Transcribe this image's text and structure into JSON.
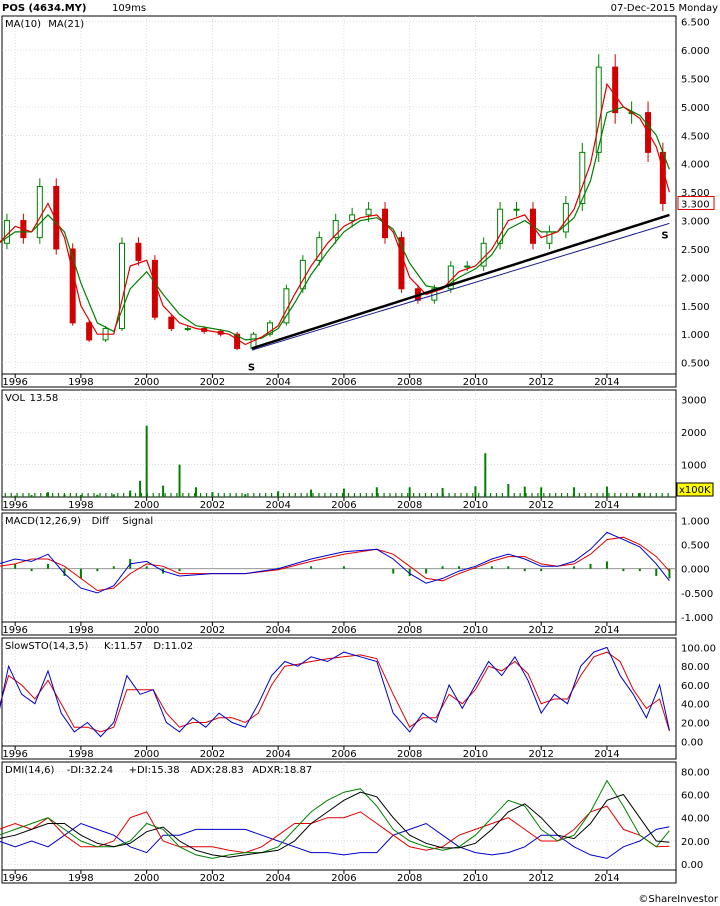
{
  "header": {
    "symbol": "POS (4634.MY)",
    "timing": "109ms",
    "date": "07-Dec-2015 Monday"
  },
  "footer": {
    "credit": "©ShareInvestor"
  },
  "x_axis_years": [
    "1996",
    "1998",
    "2000",
    "2002",
    "2004",
    "2006",
    "2008",
    "2010",
    "2012",
    "2014"
  ],
  "colors": {
    "up": "#008000",
    "down": "#d00000",
    "ma10": "#e00000",
    "ma21": "#008000",
    "trend": "#000000",
    "panel_bg": "#ffffff",
    "grid": "#c8c8c8"
  },
  "chart_data": [
    {
      "type": "line",
      "panel": "price",
      "legend": [
        {
          "name": "MA(10)",
          "color": "#e00000"
        },
        {
          "name": "MA(21)",
          "color": "#008000"
        }
      ],
      "ylim": [
        0.3,
        6.6
      ],
      "yticks": [
        "6.500",
        "6.000",
        "5.500",
        "5.000",
        "4.500",
        "4.000",
        "3.500",
        "3.000",
        "2.500",
        "2.000",
        "1.500",
        "1.000",
        "0.500"
      ],
      "last_price_label": "3.300",
      "support_markers": [
        "S",
        "S"
      ],
      "x": [
        1995.5,
        1996.0,
        1996.5,
        1997.0,
        1997.5,
        1998.0,
        1998.5,
        1999.0,
        1999.5,
        2000.0,
        2000.5,
        2001.0,
        2001.5,
        2002.0,
        2002.5,
        2003.0,
        2003.5,
        2004.0,
        2004.5,
        2005.0,
        2005.5,
        2006.0,
        2006.5,
        2007.0,
        2007.5,
        2008.0,
        2008.5,
        2009.0,
        2009.5,
        2010.0,
        2010.5,
        2011.0,
        2011.5,
        2012.0,
        2012.5,
        2013.0,
        2013.5,
        2014.0,
        2014.5,
        2015.0,
        2015.5,
        2015.9
      ],
      "close": [
        2.6,
        3.0,
        2.7,
        3.6,
        2.5,
        1.2,
        0.9,
        1.1,
        2.6,
        2.3,
        1.3,
        1.1,
        1.1,
        1.05,
        1.0,
        0.75,
        1.0,
        1.2,
        1.8,
        2.3,
        2.7,
        3.0,
        3.1,
        3.2,
        2.7,
        1.8,
        1.6,
        1.8,
        2.2,
        2.2,
        2.6,
        3.2,
        3.2,
        2.6,
        2.8,
        3.3,
        4.2,
        5.7,
        4.9,
        4.9,
        4.2,
        3.3
      ],
      "ma10": [
        2.6,
        2.9,
        2.8,
        3.3,
        2.7,
        1.5,
        1.0,
        1.0,
        2.2,
        2.3,
        1.5,
        1.2,
        1.1,
        1.05,
        1.0,
        0.82,
        0.95,
        1.15,
        1.7,
        2.2,
        2.6,
        2.9,
        3.05,
        3.1,
        2.8,
        2.0,
        1.7,
        1.8,
        2.1,
        2.2,
        2.5,
        3.0,
        3.1,
        2.7,
        2.8,
        3.2,
        4.0,
        5.4,
        5.0,
        4.8,
        4.3,
        3.5
      ],
      "ma21": [
        2.6,
        2.8,
        2.8,
        3.1,
        2.8,
        1.9,
        1.2,
        1.05,
        1.8,
        2.1,
        1.7,
        1.35,
        1.15,
        1.1,
        1.05,
        0.9,
        0.93,
        1.1,
        1.55,
        2.05,
        2.45,
        2.8,
        3.0,
        3.05,
        2.85,
        2.25,
        1.85,
        1.8,
        2.0,
        2.15,
        2.4,
        2.85,
        3.0,
        2.8,
        2.8,
        3.05,
        3.7,
        4.9,
        5.0,
        4.85,
        4.5,
        3.9
      ],
      "trendlines": [
        {
          "from": [
            2003.2,
            0.75
          ],
          "to": [
            2015.9,
            3.1
          ]
        },
        {
          "from": [
            2003.2,
            0.72
          ],
          "to": [
            2015.9,
            2.95
          ]
        }
      ]
    },
    {
      "type": "bar",
      "panel": "volume",
      "legend": [
        {
          "name": "VOL",
          "color": "#000000"
        },
        {
          "name": "13.58",
          "color": "#0000cc"
        }
      ],
      "ylim": [
        0,
        3300
      ],
      "yticks": [
        "3000",
        "2000",
        "1000"
      ],
      "unit_label": "x100K",
      "x": [
        1996.0,
        1996.5,
        1997.0,
        1997.5,
        1998.0,
        1998.5,
        1999.0,
        1999.5,
        1999.8,
        2000.0,
        2000.5,
        2001.0,
        2001.5,
        2002.0,
        2003.0,
        2004.0,
        2005.0,
        2006.0,
        2007.0,
        2008.0,
        2009.0,
        2010.0,
        2010.3,
        2011.0,
        2011.5,
        2012.0,
        2013.0,
        2014.0,
        2015.0
      ],
      "values": [
        40,
        60,
        150,
        80,
        60,
        70,
        80,
        200,
        500,
        2200,
        350,
        1000,
        300,
        150,
        90,
        180,
        230,
        260,
        300,
        300,
        280,
        330,
        1350,
        400,
        320,
        300,
        300,
        320,
        120
      ]
    },
    {
      "type": "line",
      "panel": "macd",
      "legend": [
        {
          "name": "MACD(12,26,9)",
          "color": "#000000"
        },
        {
          "name": "Diff",
          "color": "#0000cc"
        },
        {
          "name": "Signal",
          "color": "#e00000"
        }
      ],
      "ylim": [
        -1.1,
        1.15
      ],
      "yticks": [
        "1.000",
        "0.500",
        "0.000",
        "-0.500",
        "-1.000"
      ],
      "x": [
        1995.5,
        1996.0,
        1996.5,
        1997.0,
        1997.5,
        1998.0,
        1998.5,
        1999.0,
        1999.5,
        2000.0,
        2000.5,
        2001.0,
        2002.0,
        2003.0,
        2004.0,
        2005.0,
        2006.0,
        2007.0,
        2007.5,
        2008.0,
        2008.5,
        2009.0,
        2009.5,
        2010.0,
        2010.5,
        2011.0,
        2011.5,
        2012.0,
        2012.5,
        2013.0,
        2013.5,
        2014.0,
        2014.5,
        2015.0,
        2015.5,
        2015.9
      ],
      "diff": [
        0.1,
        0.2,
        0.15,
        0.3,
        -0.1,
        -0.4,
        -0.5,
        -0.35,
        0.1,
        0.15,
        -0.05,
        -0.15,
        -0.1,
        -0.1,
        0.0,
        0.2,
        0.35,
        0.4,
        0.2,
        -0.1,
        -0.3,
        -0.2,
        -0.05,
        0.05,
        0.2,
        0.3,
        0.2,
        0.05,
        0.05,
        0.15,
        0.4,
        0.75,
        0.6,
        0.45,
        0.1,
        -0.25
      ],
      "signal": [
        0.05,
        0.1,
        0.2,
        0.2,
        0.05,
        -0.2,
        -0.45,
        -0.4,
        -0.1,
        0.1,
        0.05,
        -0.1,
        -0.1,
        -0.1,
        -0.02,
        0.15,
        0.3,
        0.4,
        0.3,
        0.05,
        -0.2,
        -0.25,
        -0.1,
        0.02,
        0.15,
        0.25,
        0.25,
        0.1,
        0.05,
        0.1,
        0.3,
        0.6,
        0.65,
        0.5,
        0.25,
        -0.05
      ]
    },
    {
      "type": "line",
      "panel": "slowsto",
      "legend": [
        {
          "name": "SlowSTO(14,3,5)",
          "color": "#000000"
        },
        {
          "name": "K:11.57",
          "color": "#0000cc"
        },
        {
          "name": "D:11.02",
          "color": "#e00000"
        }
      ],
      "ylim": [
        -5,
        110
      ],
      "yticks": [
        "100.00",
        "80.00",
        "60.00",
        "40.00",
        "20.00",
        "0.00"
      ],
      "x": [
        1995.5,
        1995.8,
        1996.2,
        1996.6,
        1997.0,
        1997.4,
        1997.8,
        1998.2,
        1998.6,
        1999.0,
        1999.4,
        1999.8,
        2000.2,
        2000.6,
        2001.0,
        2001.4,
        2001.8,
        2002.2,
        2002.6,
        2003.0,
        2003.4,
        2003.8,
        2004.2,
        2004.6,
        2005.0,
        2005.5,
        2006.0,
        2006.5,
        2007.0,
        2007.5,
        2008.0,
        2008.4,
        2008.8,
        2009.2,
        2009.6,
        2010.0,
        2010.4,
        2010.8,
        2011.2,
        2011.6,
        2012.0,
        2012.4,
        2012.8,
        2013.2,
        2013.6,
        2014.0,
        2014.4,
        2014.8,
        2015.2,
        2015.6,
        2015.9
      ],
      "k": [
        30,
        80,
        50,
        40,
        75,
        30,
        10,
        20,
        5,
        20,
        70,
        50,
        55,
        20,
        10,
        25,
        15,
        30,
        20,
        15,
        40,
        70,
        85,
        80,
        90,
        85,
        95,
        90,
        85,
        30,
        10,
        30,
        20,
        60,
        35,
        60,
        85,
        70,
        90,
        65,
        30,
        50,
        40,
        80,
        95,
        100,
        70,
        50,
        25,
        60,
        11.57
      ],
      "d": [
        35,
        70,
        60,
        45,
        65,
        40,
        15,
        15,
        10,
        15,
        55,
        55,
        55,
        30,
        15,
        20,
        20,
        25,
        25,
        20,
        30,
        60,
        80,
        82,
        85,
        88,
        90,
        92,
        88,
        50,
        15,
        25,
        25,
        50,
        40,
        55,
        80,
        75,
        85,
        72,
        40,
        45,
        45,
        70,
        90,
        95,
        85,
        55,
        35,
        45,
        11.02
      ]
    },
    {
      "type": "line",
      "panel": "dmi",
      "legend": [
        {
          "name": "DMI(14,6)",
          "color": "#000000"
        },
        {
          "name": "-DI:32.24",
          "color": "#0000cc"
        },
        {
          "name": "+DI:15.38",
          "color": "#e00000"
        },
        {
          "name": "ADX:28.83",
          "color": "#008000"
        },
        {
          "name": "ADXR:18.87",
          "color": "#000000"
        }
      ],
      "ylim": [
        -5,
        88
      ],
      "yticks": [
        "80.00",
        "60.00",
        "40.00",
        "20.00",
        "0.00"
      ],
      "x": [
        1995.5,
        1996.0,
        1996.5,
        1997.0,
        1997.5,
        1998.0,
        1998.5,
        1999.0,
        1999.5,
        2000.0,
        2000.5,
        2001.0,
        2001.5,
        2002.0,
        2002.5,
        2003.0,
        2003.5,
        2004.0,
        2004.5,
        2005.0,
        2005.5,
        2006.0,
        2006.5,
        2007.0,
        2007.5,
        2008.0,
        2008.5,
        2009.0,
        2009.5,
        2010.0,
        2010.5,
        2011.0,
        2011.5,
        2012.0,
        2012.5,
        2013.0,
        2013.5,
        2014.0,
        2014.5,
        2015.0,
        2015.5,
        2015.9
      ],
      "minus_di": [
        20,
        15,
        20,
        15,
        25,
        35,
        30,
        25,
        15,
        10,
        25,
        25,
        30,
        30,
        30,
        30,
        25,
        20,
        15,
        10,
        10,
        8,
        10,
        10,
        25,
        30,
        35,
        25,
        15,
        10,
        8,
        10,
        15,
        25,
        25,
        15,
        8,
        5,
        15,
        20,
        30,
        32.24
      ],
      "plus_di": [
        30,
        35,
        30,
        40,
        25,
        15,
        15,
        20,
        40,
        45,
        20,
        15,
        15,
        15,
        12,
        10,
        15,
        25,
        35,
        35,
        40,
        40,
        45,
        35,
        25,
        15,
        12,
        15,
        25,
        30,
        35,
        40,
        30,
        20,
        20,
        30,
        45,
        50,
        30,
        25,
        15,
        15.38
      ],
      "adx": [
        25,
        30,
        35,
        40,
        30,
        20,
        15,
        15,
        20,
        35,
        30,
        15,
        8,
        5,
        8,
        10,
        10,
        15,
        30,
        45,
        55,
        62,
        65,
        50,
        30,
        20,
        15,
        12,
        15,
        25,
        40,
        55,
        50,
        30,
        20,
        25,
        45,
        72,
        50,
        25,
        15,
        28.83
      ],
      "adxr": [
        22,
        25,
        30,
        35,
        35,
        25,
        18,
        15,
        18,
        28,
        32,
        20,
        12,
        8,
        6,
        8,
        10,
        12,
        20,
        35,
        45,
        55,
        62,
        58,
        40,
        25,
        18,
        14,
        14,
        18,
        30,
        45,
        52,
        40,
        25,
        22,
        35,
        55,
        60,
        40,
        20,
        18.87
      ]
    }
  ]
}
